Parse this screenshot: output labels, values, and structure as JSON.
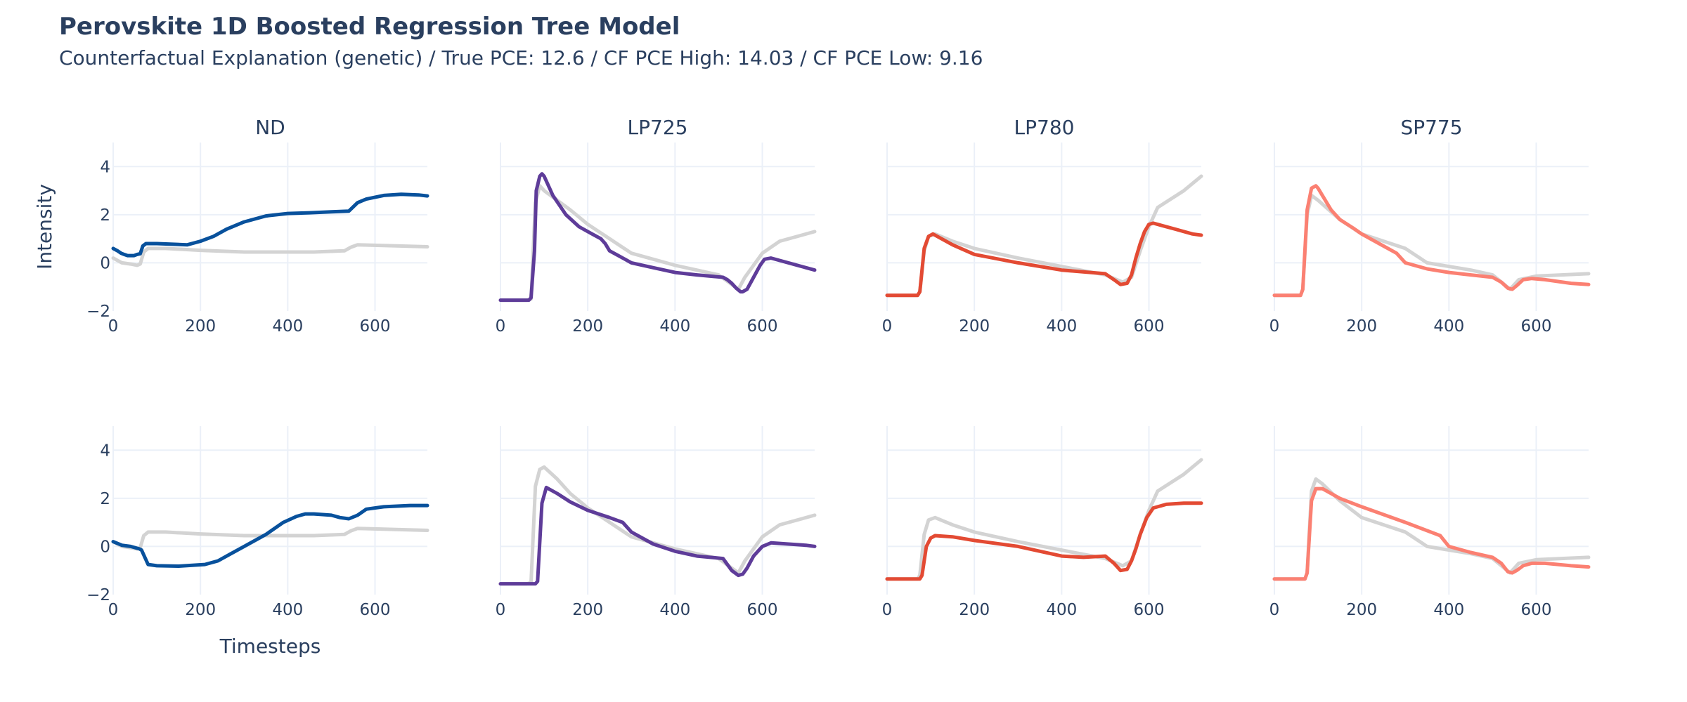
{
  "title": "Perovskite 1D Boosted Regression Tree Model",
  "subtitle": "Counterfactual Explanation (genetic) / True PCE: 12.6 / CF PCE High: 14.03 / CF PCE Low: 9.16",
  "chart_data": {
    "type": "line",
    "panel_titles": [
      "ND",
      "LP725",
      "LP780",
      "SP775"
    ],
    "xlabel": "Timesteps",
    "ylabel": "Intensity",
    "xlim": [
      0,
      720
    ],
    "ylim": [
      -2,
      5
    ],
    "x_ticks": [
      0,
      200,
      400,
      600
    ],
    "y_ticks": [
      -2,
      0,
      2,
      4
    ],
    "reference_color": "#d3d3d3",
    "panel_colors": [
      "#08519c",
      "#5e3c99",
      "#e34a33",
      "#fb8072"
    ],
    "grid": true,
    "legend": "none",
    "rows": [
      {
        "row": "CF PCE High",
        "panels": [
          {
            "reference": {
              "x": [
                0,
                20,
                40,
                55,
                62,
                70,
                80,
                120,
                200,
                300,
                400,
                460,
                530,
                545,
                560,
                620,
                720
              ],
              "y": [
                0.2,
                0.0,
                -0.05,
                -0.1,
                -0.05,
                0.45,
                0.6,
                0.6,
                0.52,
                0.45,
                0.45,
                0.45,
                0.5,
                0.65,
                0.75,
                0.72,
                0.67
              ]
            },
            "cf": {
              "x": [
                0,
                10,
                18,
                25,
                33,
                40,
                48,
                55,
                62,
                68,
                75,
                100,
                170,
                200,
                230,
                260,
                300,
                350,
                400,
                450,
                500,
                540,
                560,
                580,
                620,
                660,
                700,
                720
              ],
              "y": [
                0.6,
                0.5,
                0.4,
                0.35,
                0.3,
                0.3,
                0.3,
                0.35,
                0.38,
                0.7,
                0.8,
                0.8,
                0.75,
                0.9,
                1.1,
                1.4,
                1.7,
                1.95,
                2.05,
                2.08,
                2.12,
                2.15,
                2.5,
                2.65,
                2.8,
                2.85,
                2.82,
                2.78
              ]
            }
          },
          {
            "reference": {
              "x": [
                0,
                60,
                70,
                80,
                90,
                100,
                130,
                160,
                200,
                250,
                300,
                400,
                500,
                545,
                560,
                600,
                640,
                720
              ],
              "y": [
                -1.55,
                -1.55,
                -1.5,
                2.5,
                3.2,
                3.0,
                2.6,
                2.2,
                1.6,
                1.0,
                0.4,
                -0.1,
                -0.5,
                -1.1,
                -0.6,
                0.4,
                0.9,
                1.3
              ]
            },
            "cf": {
              "x": [
                0,
                65,
                70,
                78,
                82,
                90,
                95,
                100,
                120,
                150,
                180,
                210,
                230,
                240,
                250,
                270,
                300,
                350,
                400,
                450,
                510,
                520,
                530,
                540,
                550,
                555,
                565,
                580,
                595,
                605,
                620,
                700,
                720
              ],
              "y": [
                -1.55,
                -1.55,
                -1.45,
                0.5,
                3.0,
                3.6,
                3.7,
                3.6,
                2.8,
                2.0,
                1.5,
                1.2,
                1.0,
                0.8,
                0.5,
                0.3,
                0.0,
                -0.2,
                -0.4,
                -0.5,
                -0.6,
                -0.7,
                -0.85,
                -1.05,
                -1.2,
                -1.2,
                -1.1,
                -0.6,
                -0.1,
                0.15,
                0.2,
                -0.2,
                -0.3
              ]
            }
          },
          {
            "reference": {
              "x": [
                0,
                70,
                75,
                85,
                95,
                110,
                150,
                200,
                300,
                400,
                500,
                540,
                560,
                580,
                600,
                620,
                680,
                720
              ],
              "y": [
                -1.35,
                -1.35,
                -1.2,
                0.5,
                1.1,
                1.2,
                0.9,
                0.6,
                0.2,
                -0.15,
                -0.5,
                -0.8,
                -0.6,
                0.5,
                1.5,
                2.3,
                3.0,
                3.6
              ]
            },
            "cf": {
              "x": [
                0,
                70,
                75,
                85,
                95,
                105,
                120,
                150,
                200,
                300,
                400,
                500,
                520,
                535,
                550,
                560,
                570,
                580,
                590,
                600,
                610,
                630,
                660,
                700,
                720
              ],
              "y": [
                -1.35,
                -1.35,
                -1.2,
                0.6,
                1.1,
                1.2,
                1.05,
                0.75,
                0.35,
                0.0,
                -0.3,
                -0.45,
                -0.7,
                -0.9,
                -0.85,
                -0.5,
                0.2,
                0.8,
                1.3,
                1.6,
                1.65,
                1.55,
                1.4,
                1.2,
                1.15
              ]
            }
          },
          {
            "reference": {
              "x": [
                0,
                60,
                65,
                75,
                85,
                100,
                150,
                200,
                300,
                350,
                450,
                500,
                540,
                560,
                600,
                720
              ],
              "y": [
                -1.35,
                -1.35,
                -1.1,
                2.0,
                2.8,
                2.6,
                1.8,
                1.2,
                0.6,
                0.0,
                -0.3,
                -0.5,
                -1.1,
                -0.7,
                -0.55,
                -0.45
              ]
            },
            "cf": {
              "x": [
                0,
                60,
                65,
                75,
                85,
                95,
                100,
                110,
                130,
                150,
                180,
                200,
                240,
                280,
                300,
                350,
                400,
                450,
                500,
                520,
                535,
                545,
                555,
                570,
                590,
                620,
                680,
                720
              ],
              "y": [
                -1.35,
                -1.35,
                -1.1,
                2.2,
                3.1,
                3.2,
                3.1,
                2.8,
                2.2,
                1.8,
                1.45,
                1.2,
                0.8,
                0.4,
                0.0,
                -0.25,
                -0.4,
                -0.5,
                -0.6,
                -0.8,
                -1.05,
                -1.1,
                -0.95,
                -0.7,
                -0.65,
                -0.7,
                -0.85,
                -0.9
              ]
            }
          }
        ]
      },
      {
        "row": "CF PCE Low",
        "panels": [
          {
            "reference": {
              "x": [
                0,
                20,
                40,
                55,
                62,
                70,
                80,
                120,
                200,
                300,
                400,
                460,
                530,
                545,
                560,
                620,
                720
              ],
              "y": [
                0.2,
                0.0,
                -0.05,
                -0.1,
                -0.05,
                0.45,
                0.6,
                0.6,
                0.52,
                0.45,
                0.45,
                0.45,
                0.5,
                0.65,
                0.75,
                0.72,
                0.67
              ]
            },
            "cf": {
              "x": [
                0,
                20,
                40,
                60,
                65,
                80,
                100,
                150,
                210,
                240,
                270,
                300,
                350,
                390,
                420,
                440,
                460,
                500,
                520,
                540,
                560,
                580,
                620,
                680,
                720
              ],
              "y": [
                0.2,
                0.05,
                0.0,
                -0.1,
                -0.15,
                -0.75,
                -0.8,
                -0.82,
                -0.75,
                -0.6,
                -0.3,
                0.0,
                0.5,
                1.0,
                1.25,
                1.35,
                1.35,
                1.3,
                1.2,
                1.15,
                1.3,
                1.55,
                1.65,
                1.7,
                1.7
              ]
            }
          },
          {
            "reference": {
              "x": [
                0,
                60,
                70,
                80,
                90,
                100,
                130,
                160,
                200,
                250,
                300,
                400,
                500,
                545,
                560,
                600,
                640,
                720
              ],
              "y": [
                -1.55,
                -1.55,
                -1.5,
                2.5,
                3.2,
                3.3,
                2.8,
                2.2,
                1.6,
                1.0,
                0.4,
                -0.1,
                -0.5,
                -1.1,
                -0.6,
                0.4,
                0.9,
                1.3
              ]
            },
            "cf": {
              "x": [
                0,
                80,
                85,
                95,
                105,
                130,
                160,
                200,
                250,
                280,
                300,
                350,
                400,
                450,
                510,
                520,
                530,
                545,
                555,
                565,
                580,
                600,
                620,
                660,
                700,
                720
              ],
              "y": [
                -1.55,
                -1.55,
                -1.45,
                1.8,
                2.45,
                2.2,
                1.85,
                1.5,
                1.2,
                1.0,
                0.6,
                0.1,
                -0.2,
                -0.4,
                -0.5,
                -0.75,
                -1.0,
                -1.2,
                -1.15,
                -0.9,
                -0.4,
                0.0,
                0.15,
                0.1,
                0.05,
                0.0
              ]
            }
          },
          {
            "reference": {
              "x": [
                0,
                70,
                75,
                85,
                95,
                110,
                150,
                200,
                300,
                400,
                500,
                540,
                560,
                580,
                600,
                620,
                680,
                720
              ],
              "y": [
                -1.35,
                -1.35,
                -1.2,
                0.5,
                1.1,
                1.2,
                0.9,
                0.6,
                0.2,
                -0.15,
                -0.5,
                -0.8,
                -0.6,
                0.5,
                1.5,
                2.3,
                3.0,
                3.6
              ]
            },
            "cf": {
              "x": [
                0,
                75,
                80,
                90,
                100,
                110,
                150,
                200,
                300,
                400,
                450,
                500,
                520,
                535,
                550,
                560,
                570,
                580,
                595,
                610,
                640,
                680,
                720
              ],
              "y": [
                -1.35,
                -1.35,
                -1.2,
                0.0,
                0.35,
                0.45,
                0.4,
                0.25,
                0.0,
                -0.4,
                -0.45,
                -0.4,
                -0.7,
                -1.0,
                -0.95,
                -0.6,
                -0.1,
                0.5,
                1.2,
                1.6,
                1.75,
                1.8,
                1.8
              ]
            }
          },
          {
            "reference": {
              "x": [
                0,
                70,
                75,
                85,
                95,
                110,
                150,
                200,
                300,
                350,
                450,
                500,
                540,
                560,
                600,
                720
              ],
              "y": [
                -1.35,
                -1.35,
                -1.1,
                2.3,
                2.8,
                2.6,
                1.9,
                1.2,
                0.6,
                0.0,
                -0.3,
                -0.5,
                -1.1,
                -0.7,
                -0.55,
                -0.45
              ]
            },
            "cf": {
              "x": [
                0,
                70,
                75,
                85,
                95,
                110,
                150,
                200,
                300,
                380,
                400,
                450,
                500,
                520,
                535,
                545,
                555,
                570,
                590,
                620,
                680,
                720
              ],
              "y": [
                -1.35,
                -1.35,
                -1.1,
                1.9,
                2.4,
                2.4,
                2.0,
                1.65,
                1.0,
                0.45,
                0.0,
                -0.25,
                -0.45,
                -0.7,
                -1.05,
                -1.1,
                -1.0,
                -0.8,
                -0.7,
                -0.7,
                -0.8,
                -0.85
              ]
            }
          }
        ]
      }
    ]
  }
}
